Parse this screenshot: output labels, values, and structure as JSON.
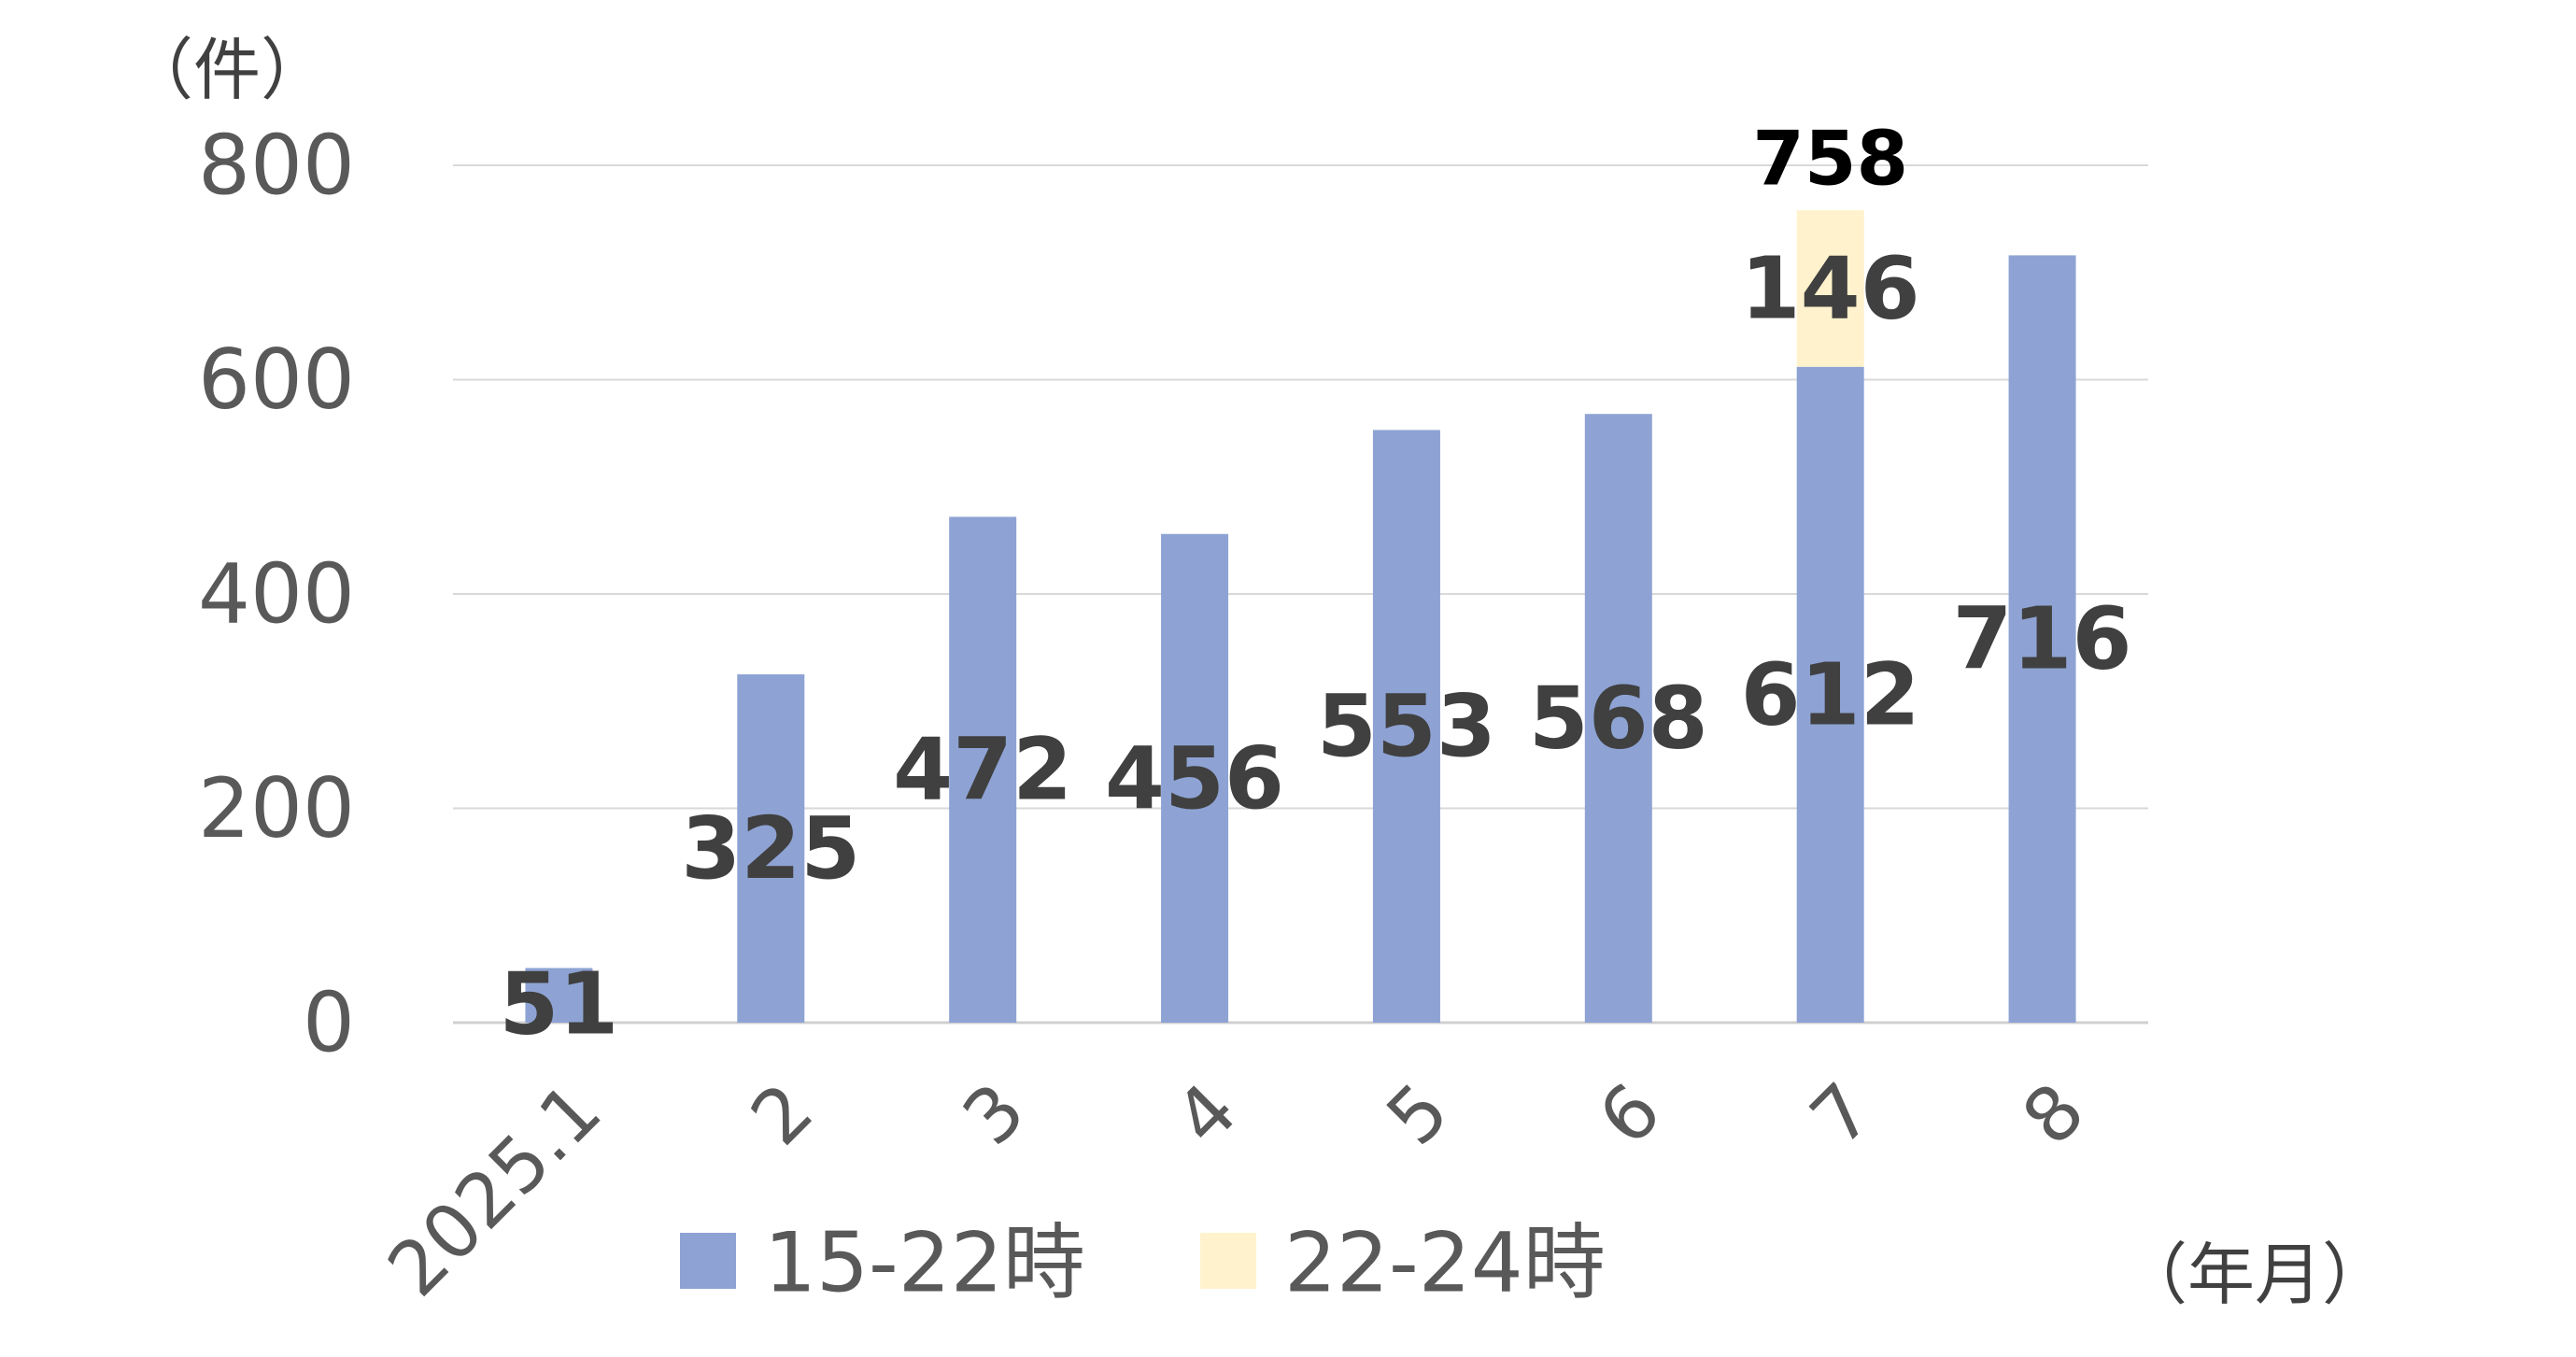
{
  "chart_data": {
    "type": "bar",
    "stacked": true,
    "categories": [
      "2025.1",
      "2",
      "3",
      "4",
      "5",
      "6",
      "7",
      "8"
    ],
    "series": [
      {
        "name": "15-22時",
        "color": "#8EA3D4",
        "values": [
          51,
          325,
          472,
          456,
          553,
          568,
          612,
          716
        ]
      },
      {
        "name": "22-24時",
        "color": "#FFF2CC",
        "values": [
          null,
          null,
          null,
          null,
          null,
          null,
          146,
          null
        ]
      }
    ],
    "totals": [
      null,
      null,
      null,
      null,
      null,
      null,
      758,
      null
    ],
    "y_unit": "（件）",
    "x_unit": "（年月）",
    "ylim": [
      0,
      800
    ],
    "yticks": [
      0,
      200,
      400,
      600,
      800
    ],
    "grid": true,
    "legend_position": "bottom"
  }
}
